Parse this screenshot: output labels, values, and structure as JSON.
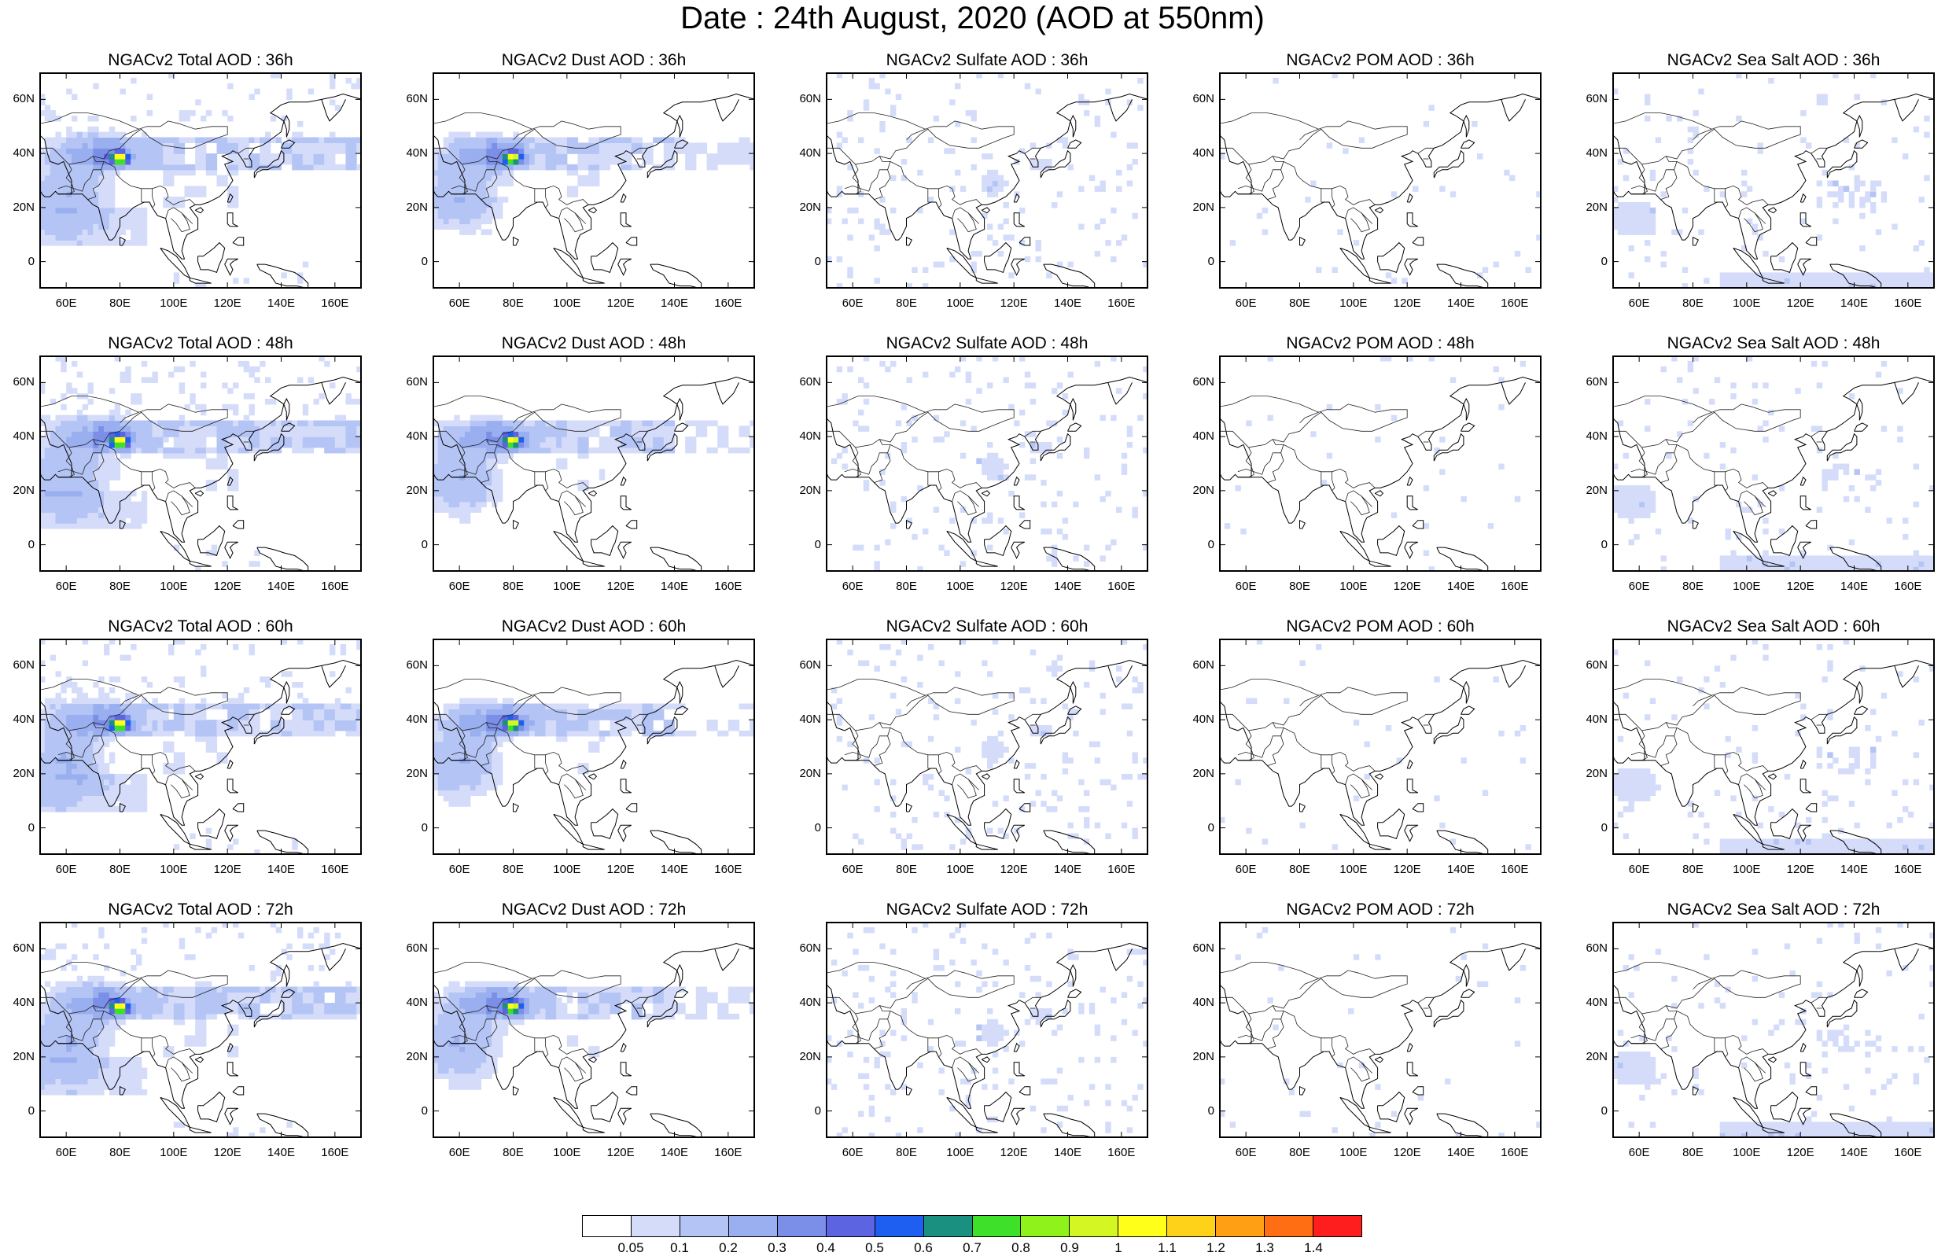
{
  "title": "Date : 24th August, 2020 (AOD at 550nm)",
  "panels": [
    [
      "NGACv2 Total AOD : 36h",
      "NGACv2 Dust AOD : 36h",
      "NGACv2 Sulfate AOD : 36h",
      "NGACv2 POM AOD : 36h",
      "NGACv2 Sea Salt AOD : 36h"
    ],
    [
      "NGACv2 Total AOD : 48h",
      "NGACv2 Dust AOD : 48h",
      "NGACv2 Sulfate AOD : 48h",
      "NGACv2 POM AOD : 48h",
      "NGACv2 Sea Salt AOD : 48h"
    ],
    [
      "NGACv2 Total AOD : 60h",
      "NGACv2 Dust AOD : 60h",
      "NGACv2 Sulfate AOD : 60h",
      "NGACv2 POM AOD : 60h",
      "NGACv2 Sea Salt AOD : 60h"
    ],
    [
      "NGACv2 Total AOD : 72h",
      "NGACv2 Dust AOD : 72h",
      "NGACv2 Sulfate AOD : 72h",
      "NGACv2 POM AOD : 72h",
      "NGACv2 Sea Salt  AOD : 72h"
    ]
  ],
  "lat_labels": [
    "60N",
    "40N",
    "20N",
    "0"
  ],
  "lon_labels": [
    "60E",
    "80E",
    "100E",
    "120E",
    "140E",
    "160E"
  ],
  "colorbar": {
    "labels": [
      "0.05",
      "0.1",
      "0.2",
      "0.3",
      "0.4",
      "0.5",
      "0.6",
      "0.7",
      "0.8",
      "0.9",
      "1",
      "1.1",
      "1.2",
      "1.3",
      "1.4"
    ],
    "colors": [
      "#ffffff",
      "#d4dcfa",
      "#b4c4f5",
      "#99afef",
      "#7b8fe8",
      "#5d64e2",
      "#1e5ef0",
      "#1a9080",
      "#3ee02a",
      "#8ff21a",
      "#d4f622",
      "#ffff1a",
      "#ffd21a",
      "#ffa014",
      "#ff6e12",
      "#ff1e1e"
    ]
  }
}
